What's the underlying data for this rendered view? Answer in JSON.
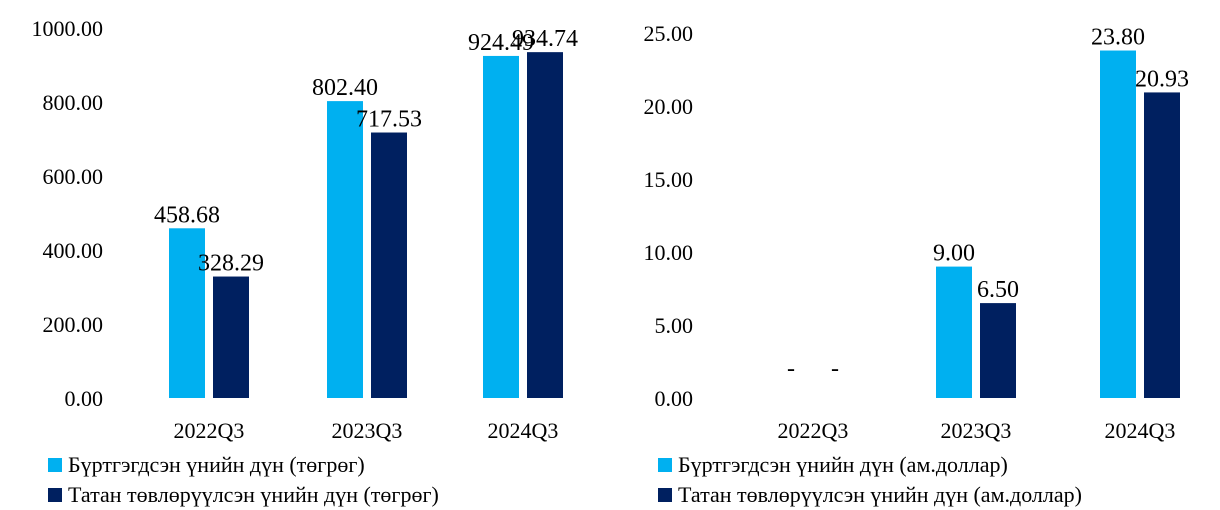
{
  "chart_data": [
    {
      "type": "bar",
      "categories": [
        "2022Q3",
        "2023Q3",
        "2024Q3"
      ],
      "series": [
        {
          "name": "Бүртгэгдсэн үнийн дүн (төгрөг)",
          "values": [
            458.68,
            802.4,
            924.49
          ],
          "labels": [
            "458.68",
            "802.40",
            "924.49"
          ],
          "color": "#00B0F0"
        },
        {
          "name": "Татан төвлөрүүлсэн үнийн дүн (төгрөг)",
          "values": [
            328.29,
            717.53,
            934.74
          ],
          "labels": [
            "328.29",
            "717.53",
            "934.74"
          ],
          "color": "#002060"
        }
      ],
      "yticks": [
        "0.00",
        "200.00",
        "400.00",
        "600.00",
        "800.00",
        "1000.00"
      ],
      "ylim": [
        0,
        1000
      ],
      "legend_position": "bottom-left"
    },
    {
      "type": "bar",
      "categories": [
        "2022Q3",
        "2023Q3",
        "2024Q3"
      ],
      "series": [
        {
          "name": "Бүртгэгдсэн үнийн дүн (ам.доллар)",
          "values": [
            0,
            9.0,
            23.8
          ],
          "labels": [
            "-",
            "9.00",
            "23.80"
          ],
          "color": "#00B0F0"
        },
        {
          "name": "Татан төвлөрүүлсэн үнийн дүн (ам.доллар)",
          "values": [
            0,
            6.5,
            20.93
          ],
          "labels": [
            "-",
            "6.50",
            "20.93"
          ],
          "color": "#002060"
        }
      ],
      "yticks": [
        "0.00",
        "5.00",
        "10.00",
        "15.00",
        "20.00",
        "25.00"
      ],
      "ylim": [
        0,
        25
      ],
      "legend_position": "bottom-left"
    }
  ]
}
